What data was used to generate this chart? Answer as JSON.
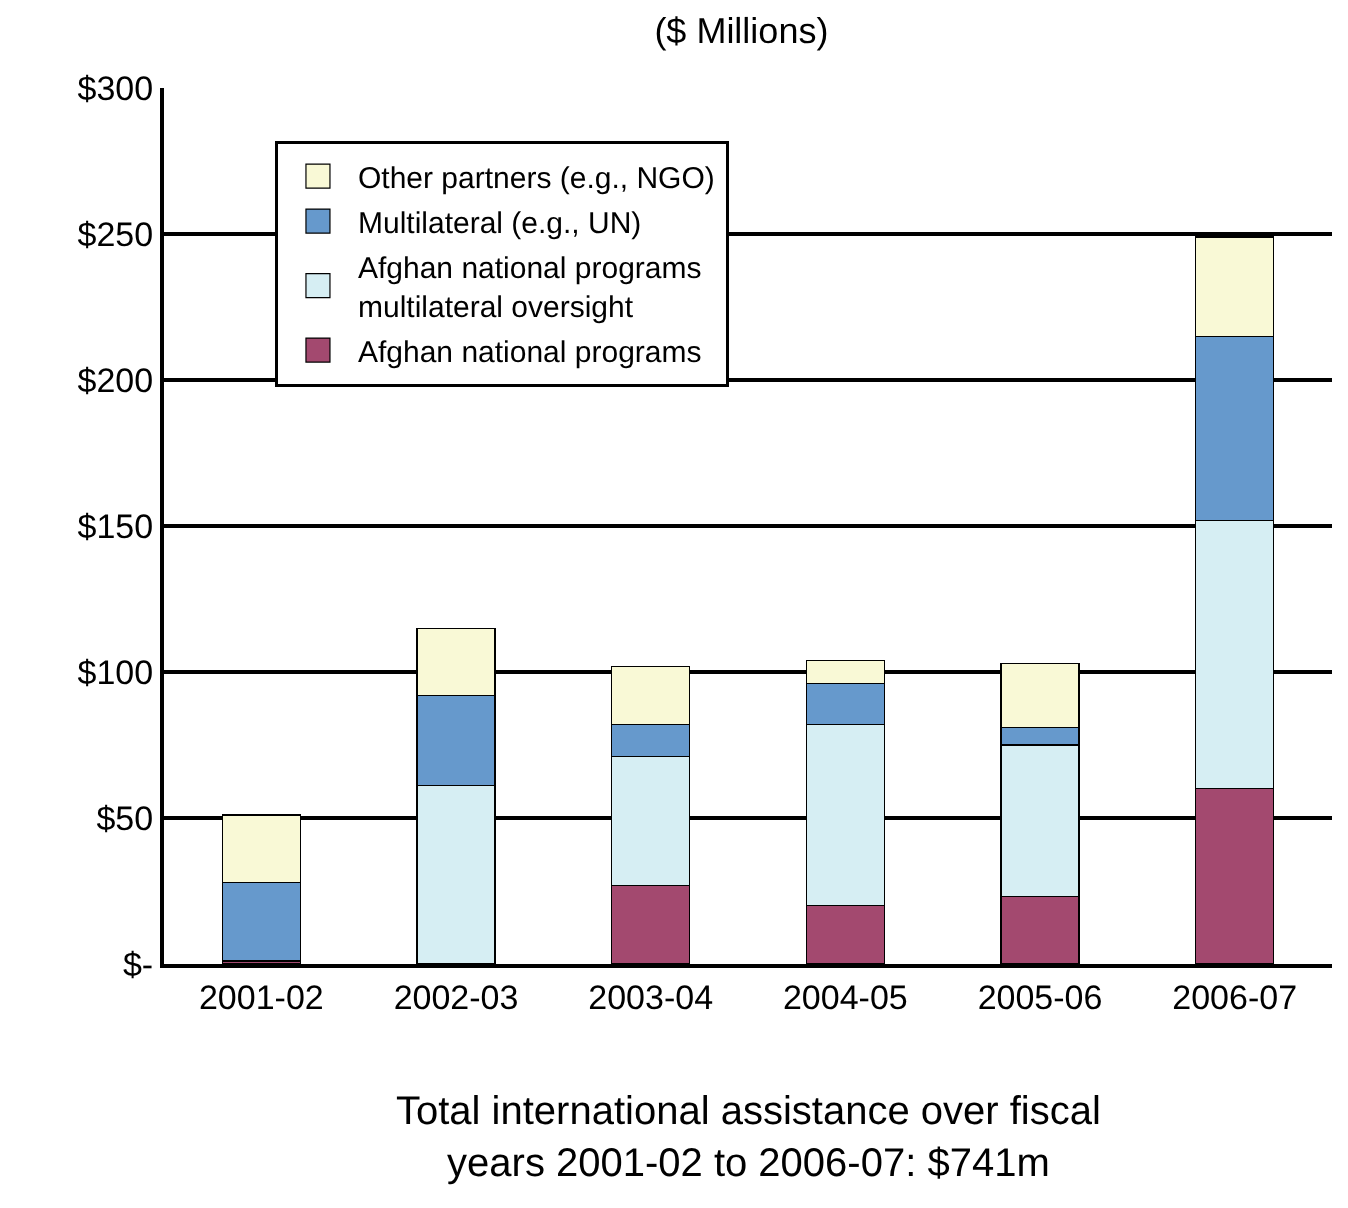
{
  "chart_data": {
    "type": "bar",
    "stacked": true,
    "title": "($ Millions)",
    "categories": [
      "2001-02",
      "2002-03",
      "2003-04",
      "2004-05",
      "2005-06",
      "2006-07"
    ],
    "series": [
      {
        "name": "Afghan national programs",
        "color": "#a3496f",
        "values": [
          1,
          0,
          27,
          20,
          23,
          60
        ]
      },
      {
        "name": "Afghan national programs\nmultilateral oversight",
        "color": "#d6eef3",
        "values": [
          0,
          61,
          44,
          62,
          52,
          92
        ]
      },
      {
        "name": "Multilateral (e.g., UN)",
        "color": "#6699cc",
        "values": [
          27,
          31,
          11,
          14,
          6,
          63
        ]
      },
      {
        "name": "Other partners (e.g., NGO)",
        "color": "#f9f9d6",
        "values": [
          23,
          23,
          20,
          8,
          22,
          34
        ]
      }
    ],
    "ylim": [
      0,
      300
    ],
    "yticks": [
      {
        "value": 0,
        "label": "$-"
      },
      {
        "value": 50,
        "label": "$50"
      },
      {
        "value": 100,
        "label": "$100"
      },
      {
        "value": 150,
        "label": "$150"
      },
      {
        "value": 200,
        "label": "$200"
      },
      {
        "value": 250,
        "label": "$250"
      },
      {
        "value": 300,
        "label": "$300"
      }
    ],
    "grid": "y",
    "legend": "top left",
    "annotations": [
      "Total international assistance over fiscal\nyears 2001-02 to 2006-07: $741m"
    ]
  }
}
